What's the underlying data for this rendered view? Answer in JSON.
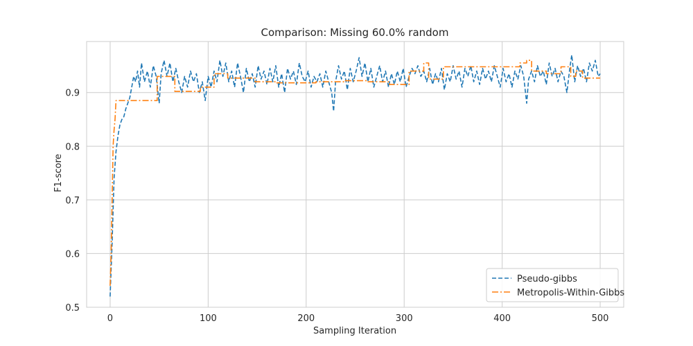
{
  "chart_data": {
    "type": "line",
    "title": "Comparison: Missing 60.0% random",
    "xlabel": "Sampling Iteration",
    "ylabel": "F1-score",
    "xlim": [
      -24,
      524
    ],
    "ylim": [
      0.5,
      0.995
    ],
    "xticks": [
      0,
      100,
      200,
      300,
      400,
      500
    ],
    "yticks": [
      0.5,
      0.6,
      0.7,
      0.8,
      0.9
    ],
    "ytick_labels": [
      "0.5",
      "0.6",
      "0.7",
      "0.8",
      "0.9"
    ],
    "grid": true,
    "legend_position": "lower-right",
    "series": [
      {
        "name": "Pseudo-gibbs",
        "color": "#1f77b4",
        "style": "dashed",
        "points": [
          [
            0,
            0.52
          ],
          [
            2,
            0.62
          ],
          [
            4,
            0.74
          ],
          [
            6,
            0.79
          ],
          [
            8,
            0.82
          ],
          [
            10,
            0.84
          ],
          [
            12,
            0.85
          ],
          [
            14,
            0.855
          ],
          [
            16,
            0.87
          ],
          [
            18,
            0.88
          ],
          [
            20,
            0.89
          ],
          [
            22,
            0.91
          ],
          [
            24,
            0.93
          ],
          [
            26,
            0.92
          ],
          [
            28,
            0.94
          ],
          [
            30,
            0.91
          ],
          [
            32,
            0.955
          ],
          [
            35,
            0.92
          ],
          [
            38,
            0.94
          ],
          [
            41,
            0.91
          ],
          [
            44,
            0.95
          ],
          [
            47,
            0.93
          ],
          [
            50,
            0.88
          ],
          [
            52,
            0.935
          ],
          [
            55,
            0.96
          ],
          [
            58,
            0.93
          ],
          [
            61,
            0.955
          ],
          [
            64,
            0.92
          ],
          [
            67,
            0.945
          ],
          [
            70,
            0.92
          ],
          [
            73,
            0.9
          ],
          [
            76,
            0.93
          ],
          [
            79,
            0.91
          ],
          [
            82,
            0.94
          ],
          [
            85,
            0.92
          ],
          [
            88,
            0.935
          ],
          [
            91,
            0.9
          ],
          [
            94,
            0.92
          ],
          [
            97,
            0.885
          ],
          [
            100,
            0.93
          ],
          [
            103,
            0.91
          ],
          [
            106,
            0.94
          ],
          [
            109,
            0.92
          ],
          [
            112,
            0.96
          ],
          [
            115,
            0.93
          ],
          [
            118,
            0.955
          ],
          [
            121,
            0.92
          ],
          [
            124,
            0.94
          ],
          [
            127,
            0.91
          ],
          [
            130,
            0.955
          ],
          [
            133,
            0.93
          ],
          [
            136,
            0.9
          ],
          [
            139,
            0.945
          ],
          [
            142,
            0.92
          ],
          [
            145,
            0.935
          ],
          [
            148,
            0.91
          ],
          [
            151,
            0.95
          ],
          [
            154,
            0.925
          ],
          [
            157,
            0.94
          ],
          [
            160,
            0.915
          ],
          [
            163,
            0.945
          ],
          [
            166,
            0.92
          ],
          [
            169,
            0.95
          ],
          [
            172,
            0.91
          ],
          [
            175,
            0.935
          ],
          [
            178,
            0.9
          ],
          [
            181,
            0.945
          ],
          [
            184,
            0.925
          ],
          [
            187,
            0.94
          ],
          [
            190,
            0.915
          ],
          [
            193,
            0.955
          ],
          [
            196,
            0.93
          ],
          [
            199,
            0.92
          ],
          [
            202,
            0.94
          ],
          [
            205,
            0.91
          ],
          [
            208,
            0.93
          ],
          [
            211,
            0.92
          ],
          [
            214,
            0.935
          ],
          [
            217,
            0.91
          ],
          [
            220,
            0.94
          ],
          [
            223,
            0.92
          ],
          [
            226,
            0.9
          ],
          [
            228,
            0.865
          ],
          [
            230,
            0.92
          ],
          [
            233,
            0.95
          ],
          [
            236,
            0.925
          ],
          [
            239,
            0.94
          ],
          [
            242,
            0.905
          ],
          [
            245,
            0.945
          ],
          [
            248,
            0.92
          ],
          [
            251,
            0.94
          ],
          [
            254,
            0.965
          ],
          [
            257,
            0.93
          ],
          [
            260,
            0.955
          ],
          [
            263,
            0.92
          ],
          [
            266,
            0.945
          ],
          [
            269,
            0.91
          ],
          [
            272,
            0.93
          ],
          [
            275,
            0.95
          ],
          [
            278,
            0.92
          ],
          [
            281,
            0.94
          ],
          [
            284,
            0.91
          ],
          [
            287,
            0.935
          ],
          [
            290,
            0.915
          ],
          [
            293,
            0.94
          ],
          [
            296,
            0.92
          ],
          [
            299,
            0.945
          ],
          [
            302,
            0.91
          ],
          [
            305,
            0.93
          ],
          [
            308,
            0.945
          ],
          [
            311,
            0.935
          ],
          [
            314,
            0.95
          ],
          [
            317,
            0.93
          ],
          [
            320,
            0.94
          ],
          [
            323,
            0.92
          ],
          [
            326,
            0.945
          ],
          [
            329,
            0.915
          ],
          [
            332,
            0.935
          ],
          [
            335,
            0.92
          ],
          [
            338,
            0.945
          ],
          [
            341,
            0.905
          ],
          [
            344,
            0.935
          ],
          [
            347,
            0.92
          ],
          [
            350,
            0.95
          ],
          [
            353,
            0.925
          ],
          [
            356,
            0.94
          ],
          [
            359,
            0.91
          ],
          [
            362,
            0.945
          ],
          [
            365,
            0.93
          ],
          [
            368,
            0.95
          ],
          [
            371,
            0.92
          ],
          [
            374,
            0.94
          ],
          [
            377,
            0.915
          ],
          [
            380,
            0.945
          ],
          [
            383,
            0.925
          ],
          [
            386,
            0.94
          ],
          [
            389,
            0.92
          ],
          [
            392,
            0.95
          ],
          [
            395,
            0.93
          ],
          [
            398,
            0.91
          ],
          [
            401,
            0.945
          ],
          [
            404,
            0.92
          ],
          [
            407,
            0.935
          ],
          [
            410,
            0.91
          ],
          [
            413,
            0.94
          ],
          [
            416,
            0.925
          ],
          [
            419,
            0.95
          ],
          [
            422,
            0.93
          ],
          [
            425,
            0.88
          ],
          [
            427,
            0.925
          ],
          [
            430,
            0.94
          ],
          [
            433,
            0.92
          ],
          [
            436,
            0.95
          ],
          [
            439,
            0.93
          ],
          [
            442,
            0.94
          ],
          [
            445,
            0.915
          ],
          [
            448,
            0.955
          ],
          [
            451,
            0.93
          ],
          [
            454,
            0.945
          ],
          [
            457,
            0.92
          ],
          [
            460,
            0.94
          ],
          [
            463,
            0.93
          ],
          [
            466,
            0.9
          ],
          [
            469,
            0.945
          ],
          [
            471,
            0.97
          ],
          [
            474,
            0.92
          ],
          [
            477,
            0.95
          ],
          [
            480,
            0.93
          ],
          [
            483,
            0.945
          ],
          [
            486,
            0.92
          ],
          [
            489,
            0.955
          ],
          [
            492,
            0.94
          ],
          [
            495,
            0.96
          ],
          [
            498,
            0.93
          ],
          [
            500,
            0.935
          ]
        ]
      },
      {
        "name": "Metropolis-Within-Gibbs",
        "color": "#ff7f0e",
        "style": "dashdot",
        "points": [
          [
            0,
            0.54
          ],
          [
            1,
            0.6
          ],
          [
            2,
            0.7
          ],
          [
            3,
            0.8
          ],
          [
            4,
            0.83
          ],
          [
            5,
            0.85
          ],
          [
            6,
            0.885
          ],
          [
            48,
            0.885
          ],
          [
            48,
            0.93
          ],
          [
            66,
            0.93
          ],
          [
            66,
            0.902
          ],
          [
            92,
            0.902
          ],
          [
            92,
            0.91
          ],
          [
            106,
            0.91
          ],
          [
            106,
            0.935
          ],
          [
            120,
            0.935
          ],
          [
            120,
            0.927
          ],
          [
            148,
            0.927
          ],
          [
            148,
            0.92
          ],
          [
            170,
            0.92
          ],
          [
            170,
            0.918
          ],
          [
            210,
            0.918
          ],
          [
            210,
            0.92
          ],
          [
            240,
            0.92
          ],
          [
            240,
            0.922
          ],
          [
            262,
            0.922
          ],
          [
            262,
            0.92
          ],
          [
            285,
            0.92
          ],
          [
            285,
            0.915
          ],
          [
            305,
            0.915
          ],
          [
            305,
            0.94
          ],
          [
            320,
            0.94
          ],
          [
            320,
            0.955
          ],
          [
            325,
            0.955
          ],
          [
            325,
            0.925
          ],
          [
            340,
            0.925
          ],
          [
            340,
            0.948
          ],
          [
            418,
            0.948
          ],
          [
            418,
            0.955
          ],
          [
            425,
            0.955
          ],
          [
            425,
            0.96
          ],
          [
            430,
            0.96
          ],
          [
            430,
            0.94
          ],
          [
            445,
            0.94
          ],
          [
            445,
            0.935
          ],
          [
            460,
            0.935
          ],
          [
            460,
            0.948
          ],
          [
            470,
            0.948
          ],
          [
            470,
            0.93
          ],
          [
            475,
            0.93
          ],
          [
            475,
            0.94
          ],
          [
            482,
            0.94
          ],
          [
            482,
            0.927
          ],
          [
            500,
            0.927
          ]
        ]
      }
    ]
  }
}
